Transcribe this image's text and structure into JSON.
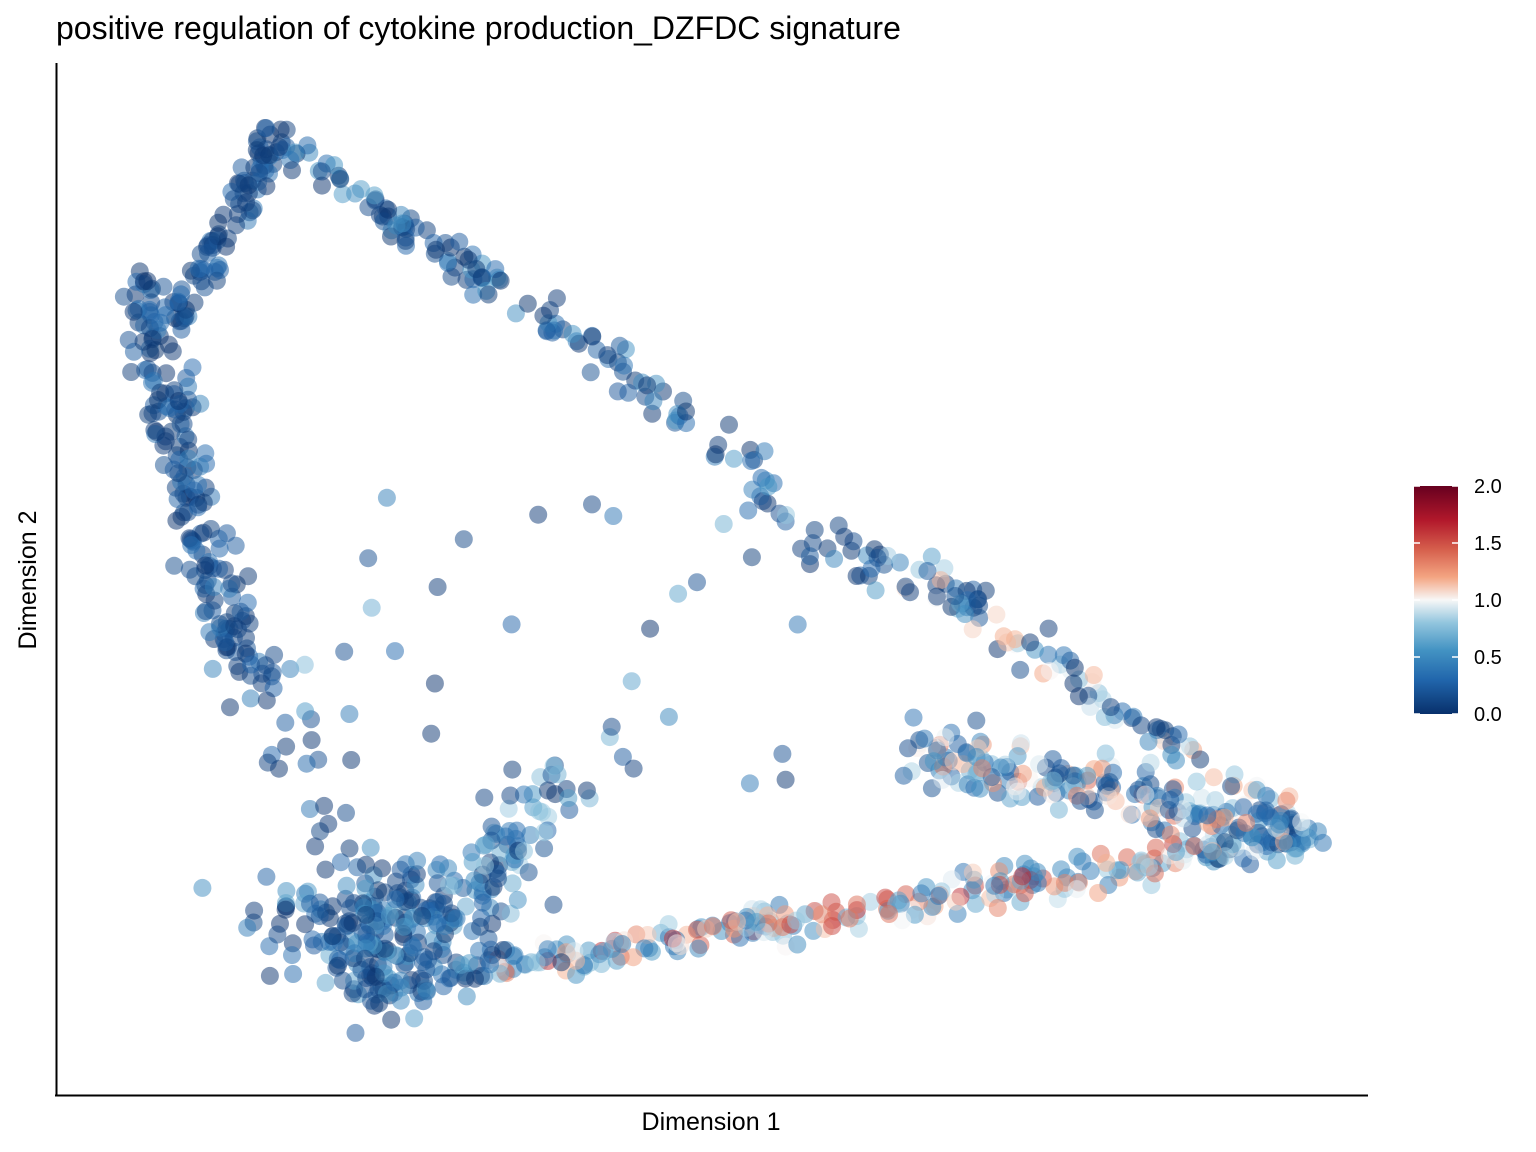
{
  "chart_data": {
    "type": "scatter",
    "title": "positive regulation of cytokine production_DZFDC signature",
    "xlabel": "Dimension 1",
    "ylabel": "Dimension 2",
    "axis_ticks": "none",
    "grid": false,
    "legend_placement": "right",
    "colorbar": {
      "min": 0.0,
      "max": 2.0,
      "ticks": [
        "0.0",
        "0.5",
        "1.0",
        "1.5",
        "2.0"
      ],
      "colors": [
        "#08306b",
        "#2166ac",
        "#4393c3",
        "#92c5de",
        "#f7f7f7",
        "#f4a582",
        "#d6604d",
        "#b2182b",
        "#67001f"
      ]
    },
    "point_opacity": 0.5,
    "regions": [
      {
        "name": "top-left arc",
        "from": [
          1.0,
          9.7
        ],
        "to": [
          0.6,
          7.6
        ],
        "score": [
          0.0,
          0.4
        ]
      },
      {
        "name": "left vertical arm",
        "from": [
          0.6,
          7.6
        ],
        "to": [
          1.5,
          4.1
        ],
        "score": [
          0.0,
          0.35
        ]
      },
      {
        "name": "upper diagonal branch",
        "from": [
          1.3,
          9.7
        ],
        "to": [
          10.0,
          2.2
        ],
        "score": [
          0.0,
          0.8
        ]
      },
      {
        "name": "lower baseline",
        "from": [
          2.0,
          0.6
        ],
        "to": [
          10.0,
          2.2
        ],
        "score": [
          0.3,
          1.7
        ]
      },
      {
        "name": "bottom-left cluster",
        "center": [
          2.3,
          1.2
        ],
        "score": [
          0.0,
          0.6
        ]
      },
      {
        "name": "right tip cluster",
        "center": [
          9.0,
          2.3
        ],
        "score": [
          0.2,
          1.5
        ]
      }
    ]
  }
}
